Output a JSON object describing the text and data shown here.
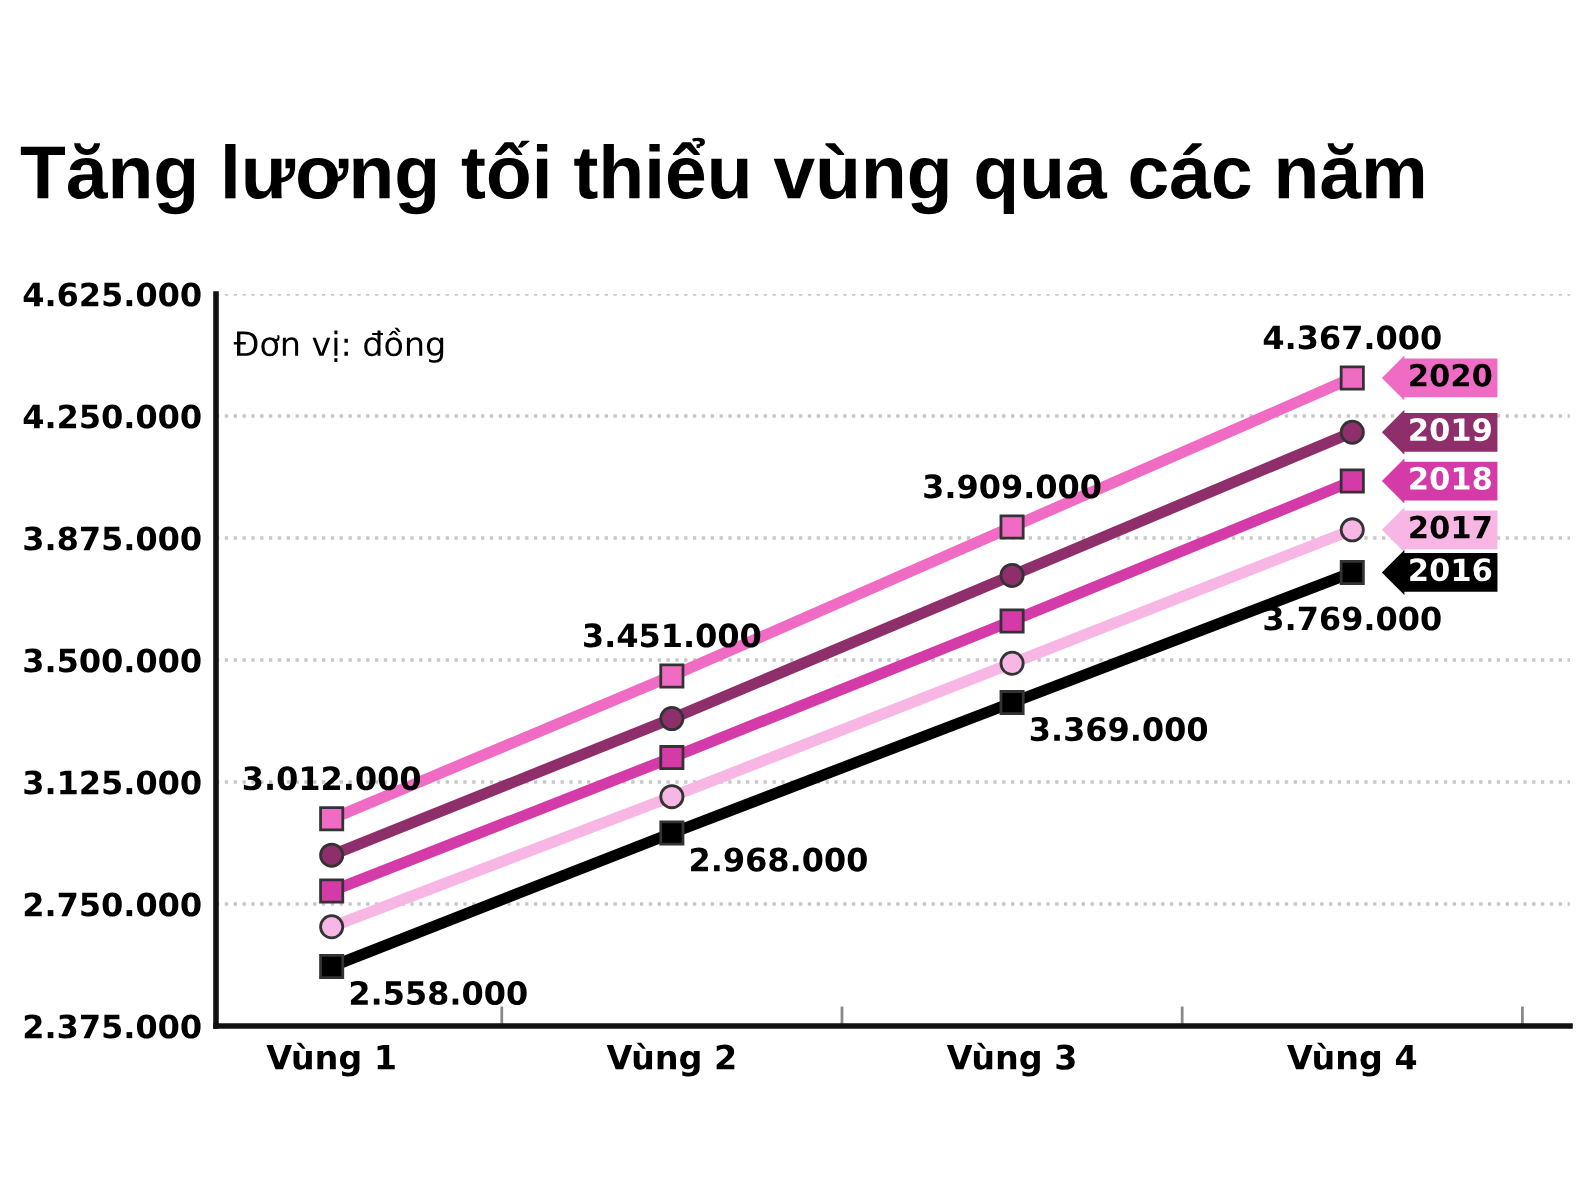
{
  "chart_data": {
    "type": "line",
    "title": "Tăng lương tối thiểu vùng qua các năm",
    "annotations": [
      "Đơn vị: đồng"
    ],
    "categories": [
      "Vùng 1",
      "Vùng 2",
      "Vùng 3",
      "Vùng 4"
    ],
    "series": [
      {
        "name": "2020",
        "color": "#f06cc4",
        "marker": "square",
        "values": [
          3012000,
          3451000,
          3909000,
          4367000
        ],
        "value_labels": [
          "3.012.000",
          "3.451.000",
          "3.909.000",
          "4.367.000"
        ]
      },
      {
        "name": "2019",
        "color": "#8e2f6b",
        "marker": "circle",
        "values": [
          2900000,
          3320000,
          3760000,
          4200000
        ]
      },
      {
        "name": "2018",
        "color": "#d43ba8",
        "marker": "square",
        "values": [
          2790000,
          3200000,
          3620000,
          4050000
        ]
      },
      {
        "name": "2017",
        "color": "#f8b6e4",
        "marker": "circle",
        "values": [
          2680000,
          3080000,
          3490000,
          3900000
        ]
      },
      {
        "name": "2016",
        "color": "#000000",
        "marker": "square",
        "values": [
          2558000,
          2968000,
          3369000,
          3769000
        ],
        "value_labels": [
          "2.558.000",
          "2.968.000",
          "3.369.000",
          "3.769.000"
        ]
      }
    ],
    "ylim": [
      2375000,
      4625000
    ],
    "yticks": [
      {
        "value": 2375000,
        "label": "2.375.000"
      },
      {
        "value": 2750000,
        "label": "2.750.000"
      },
      {
        "value": 3125000,
        "label": "3.125.000"
      },
      {
        "value": 3500000,
        "label": "3.500.000"
      },
      {
        "value": 3875000,
        "label": "3.875.000"
      },
      {
        "value": 4250000,
        "label": "4.250.000"
      },
      {
        "value": 4625000,
        "label": "4.625.000"
      }
    ],
    "grid": "y",
    "legend": "right",
    "line_style": "solid"
  }
}
